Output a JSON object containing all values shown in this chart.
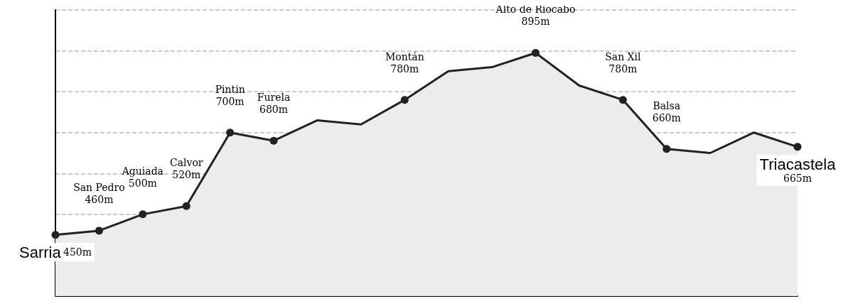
{
  "chart_data": {
    "type": "area",
    "categories": [
      "Sarria",
      "San Pedro",
      "Aguiada",
      "Calvor",
      "Pintin",
      "Furela",
      null,
      null,
      "Montán",
      null,
      null,
      "Alto de Riocabo",
      null,
      "San Xil",
      "Balsa",
      null,
      null,
      "Triacastela"
    ],
    "values": [
      450,
      460,
      500,
      520,
      700,
      680,
      730,
      720,
      780,
      850,
      860,
      895,
      815,
      780,
      660,
      650,
      700,
      665
    ],
    "value_labels": [
      "450m",
      "460m",
      "500m",
      "520m",
      "700m",
      "680m",
      null,
      null,
      "780m",
      null,
      null,
      "895m",
      null,
      "780m",
      "660m",
      null,
      null,
      "665m"
    ],
    "color": "#222222",
    "ylim": [
      300,
      1000
    ],
    "grid": "y",
    "marker": "circle",
    "line_style": "solid",
    "tick_labels": false
  }
}
